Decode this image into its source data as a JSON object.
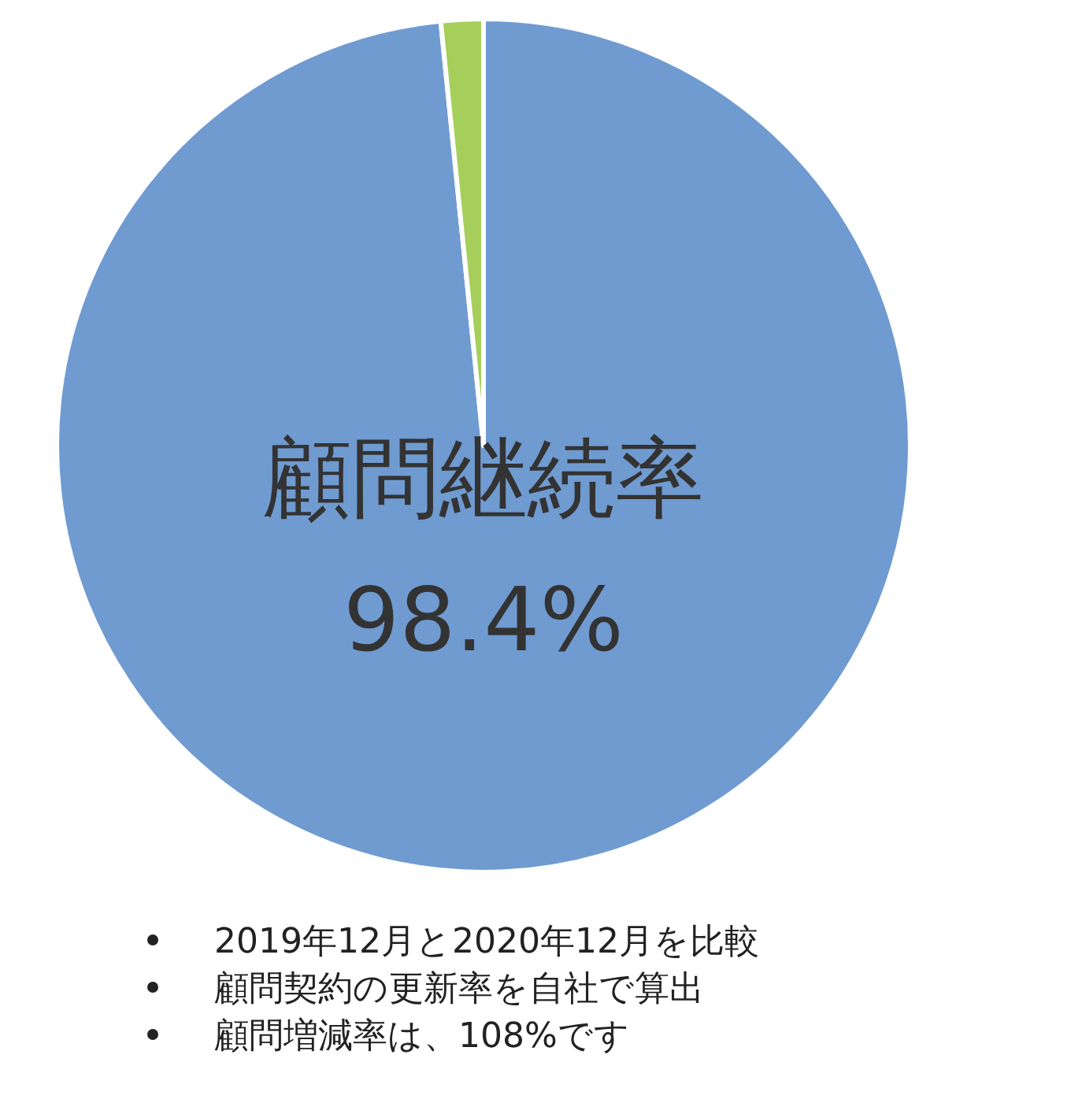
{
  "chart_data": {
    "type": "pie",
    "categories": [
      "顧問継続率",
      null
    ],
    "values": [
      98.4,
      1.6
    ],
    "colors": [
      "#6f9bd1",
      "#a5cf5a"
    ],
    "value_labels": [
      "98.4%",
      null
    ],
    "annotations": [
      "2019年12月と2020年12月を比較",
      "顧問契約の更新率を自社で算出",
      "顧問増減率は、108%です"
    ]
  }
}
